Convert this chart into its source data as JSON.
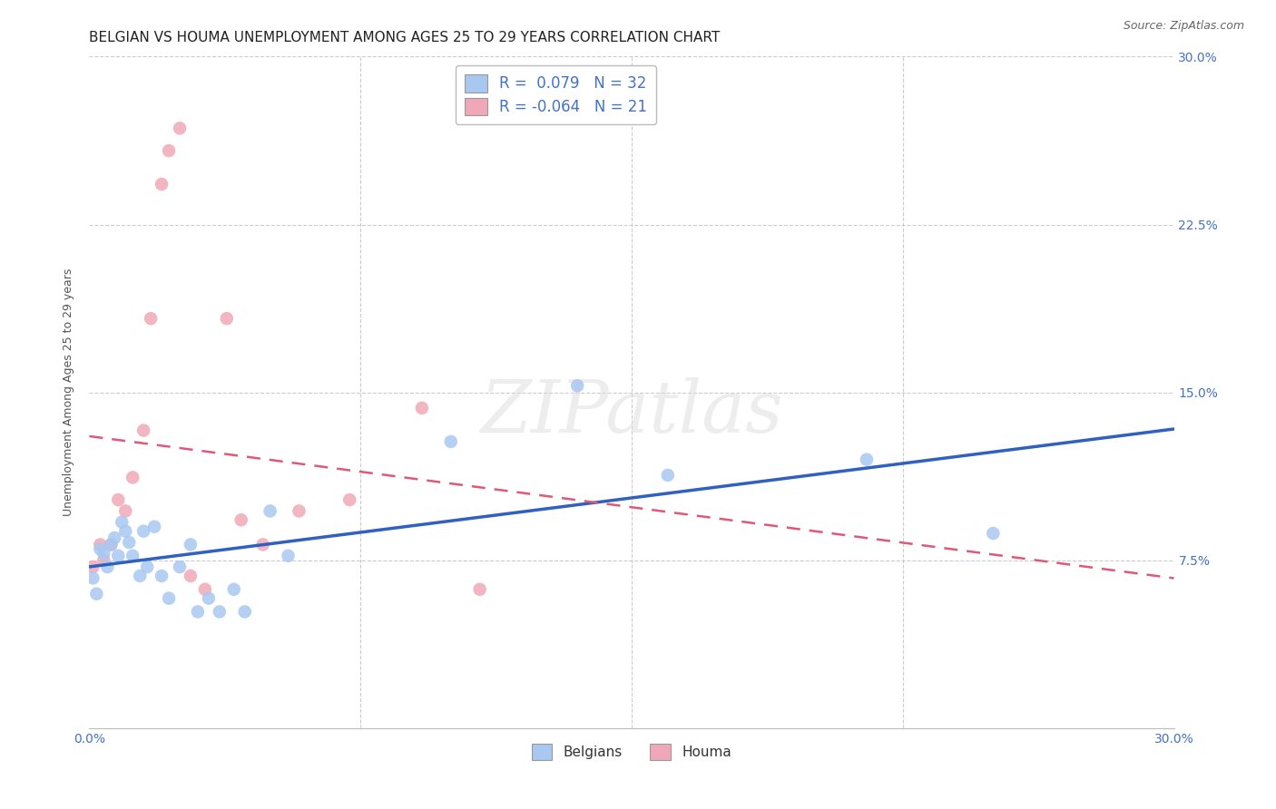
{
  "title": "BELGIAN VS HOUMA UNEMPLOYMENT AMONG AGES 25 TO 29 YEARS CORRELATION CHART",
  "source": "Source: ZipAtlas.com",
  "ylabel": "Unemployment Among Ages 25 to 29 years",
  "xlim": [
    0.0,
    0.3
  ],
  "ylim": [
    0.0,
    0.3
  ],
  "belgians_x": [
    0.001,
    0.002,
    0.003,
    0.004,
    0.005,
    0.006,
    0.007,
    0.008,
    0.009,
    0.01,
    0.011,
    0.012,
    0.014,
    0.015,
    0.016,
    0.018,
    0.02,
    0.022,
    0.025,
    0.028,
    0.03,
    0.033,
    0.036,
    0.04,
    0.043,
    0.05,
    0.055,
    0.1,
    0.135,
    0.16,
    0.215,
    0.25
  ],
  "belgians_y": [
    0.067,
    0.06,
    0.08,
    0.078,
    0.072,
    0.082,
    0.085,
    0.077,
    0.092,
    0.088,
    0.083,
    0.077,
    0.068,
    0.088,
    0.072,
    0.09,
    0.068,
    0.058,
    0.072,
    0.082,
    0.052,
    0.058,
    0.052,
    0.062,
    0.052,
    0.097,
    0.077,
    0.128,
    0.153,
    0.113,
    0.12,
    0.087
  ],
  "houma_x": [
    0.001,
    0.003,
    0.004,
    0.006,
    0.008,
    0.01,
    0.012,
    0.015,
    0.017,
    0.02,
    0.022,
    0.025,
    0.028,
    0.032,
    0.038,
    0.042,
    0.048,
    0.058,
    0.072,
    0.092,
    0.108
  ],
  "houma_y": [
    0.072,
    0.082,
    0.075,
    0.082,
    0.102,
    0.097,
    0.112,
    0.133,
    0.183,
    0.243,
    0.258,
    0.268,
    0.068,
    0.062,
    0.183,
    0.093,
    0.082,
    0.097,
    0.102,
    0.143,
    0.062
  ],
  "belgians_color": "#a8c8f0",
  "houma_color": "#f0a8b8",
  "belgians_line_color": "#3060c0",
  "houma_line_color": "#e05878",
  "belgians_R": 0.079,
  "belgians_N": 32,
  "houma_R": -0.064,
  "houma_N": 21,
  "marker_size": 110,
  "background_color": "#ffffff",
  "grid_color": "#cccccc",
  "tick_color": "#4472c4",
  "legend_text_color": "#4472c4",
  "title_fontsize": 11,
  "axis_label_fontsize": 9,
  "tick_fontsize": 10
}
